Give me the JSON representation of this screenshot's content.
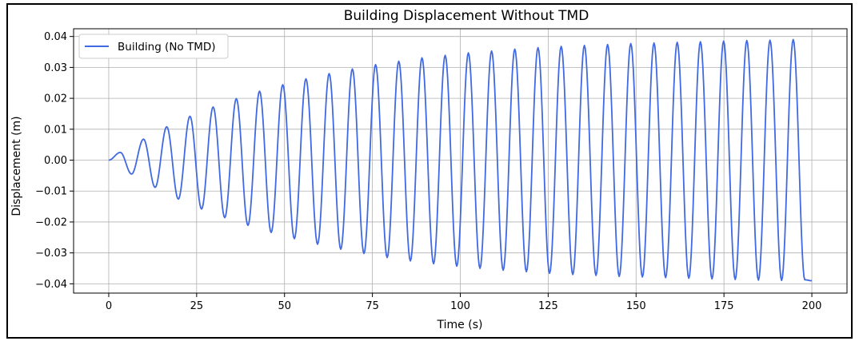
{
  "chart_data": {
    "type": "line",
    "title": "Building Displacement Without TMD",
    "xlabel": "Time (s)",
    "ylabel": "Displacement (m)",
    "xlim": [
      -10,
      210
    ],
    "ylim": [
      -0.043,
      0.0425
    ],
    "xticks": [
      0,
      25,
      50,
      75,
      100,
      125,
      150,
      175,
      200
    ],
    "xtick_labels": [
      "0",
      "25",
      "50",
      "75",
      "100",
      "125",
      "150",
      "175",
      "200"
    ],
    "yticks": [
      -0.04,
      -0.03,
      -0.02,
      -0.01,
      0.0,
      0.01,
      0.02,
      0.03,
      0.04
    ],
    "ytick_labels": [
      "−0.04",
      "−0.03",
      "−0.02",
      "−0.01",
      "0.00",
      "0.01",
      "0.02",
      "0.03",
      "0.04"
    ],
    "grid": true,
    "legend_position": "upper-left",
    "series": [
      {
        "name": "Building (No TMD)",
        "color": "#4169e1",
        "x": [
          0.0,
          3.3,
          6.5,
          9.9,
          13.2,
          16.5,
          19.8,
          23.1,
          26.4,
          29.7,
          33.0,
          36.3,
          39.6,
          42.9,
          46.2,
          49.5,
          52.8,
          56.1,
          59.4,
          62.7,
          66.0,
          69.3,
          72.6,
          75.9,
          79.2,
          82.5,
          85.8,
          89.1,
          92.4,
          95.7,
          99.0,
          102.3,
          105.6,
          108.9,
          112.2,
          115.5,
          118.8,
          122.1,
          125.4,
          128.7,
          132.0,
          135.3,
          138.6,
          141.9,
          145.2,
          148.5,
          151.8,
          155.1,
          158.4,
          161.7,
          165.0,
          168.3,
          171.6,
          174.9,
          178.2,
          181.5,
          184.8,
          188.1,
          191.4,
          194.7,
          198.0,
          200.0
        ],
        "y": [
          0.0,
          0.0025,
          -0.0045,
          0.0068,
          -0.0088,
          0.0108,
          -0.0126,
          0.0142,
          -0.0158,
          0.0172,
          -0.0186,
          0.0199,
          -0.0211,
          0.0223,
          -0.0234,
          0.0244,
          -0.0254,
          0.0263,
          -0.0272,
          0.028,
          -0.0288,
          0.0295,
          -0.0302,
          0.0309,
          -0.0315,
          0.032,
          -0.0326,
          0.0331,
          -0.0335,
          0.0339,
          -0.0343,
          0.0347,
          -0.035,
          0.0353,
          -0.0356,
          0.0359,
          -0.0361,
          0.0364,
          -0.0366,
          0.0368,
          -0.037,
          0.0371,
          -0.0373,
          0.0374,
          -0.0376,
          0.0377,
          -0.0378,
          0.0379,
          -0.038,
          0.0381,
          -0.0382,
          0.0383,
          -0.0384,
          0.0385,
          -0.0386,
          0.0387,
          -0.0388,
          0.0388,
          -0.0389,
          0.039,
          -0.0387,
          -0.039
        ]
      }
    ]
  }
}
